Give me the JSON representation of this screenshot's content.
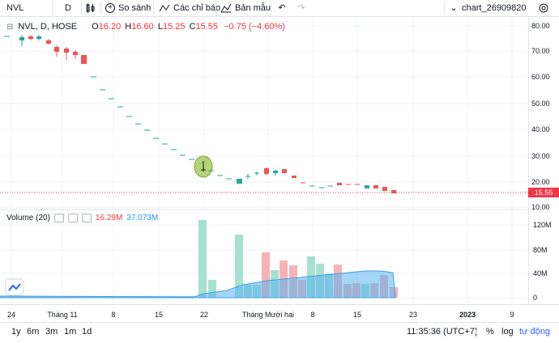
{
  "toolbar": {
    "symbol": "NVL",
    "interval": "D",
    "compare_label": "So sánh",
    "indicators_label": "Các chỉ báo",
    "templates_label": "Bản mẫu",
    "layout_name": "chart_26909820"
  },
  "legend": {
    "title": "NVL, D, HOSE",
    "open_label": "O",
    "open": "16.20",
    "high_label": "H",
    "high": "16.60",
    "low_label": "L",
    "low": "15.25",
    "close_label": "C",
    "close": "15.55",
    "change": "−0.75 (−4.60%)"
  },
  "volume_legend": {
    "title": "Volume (20)",
    "value1": "16.29M",
    "value2": "37.073M"
  },
  "price_axis": [
    "80.00",
    "70.00",
    "60.00",
    "50.00",
    "40.00",
    "30.00",
    "20.00",
    "10.00"
  ],
  "current_price": "15.55",
  "volume_axis": [
    "120M",
    "80M",
    "40M",
    "0"
  ],
  "time_axis": [
    "24",
    "Tháng 11",
    "8",
    "15",
    "22",
    "Tháng Mười hai",
    "8",
    "15",
    "23",
    "2023",
    "9"
  ],
  "bottom": {
    "ranges": [
      "1y",
      "6m",
      "3m",
      "1m",
      "1d"
    ],
    "time": "11:35:36 (UTC+7)",
    "percent": "%",
    "log": "log",
    "auto": "tự động"
  },
  "colors": {
    "up": "#26a69a",
    "down": "#ef5350",
    "volume_ma": "#5ab4f0",
    "accent": "#2962ff"
  },
  "icons": [
    "compare-icon",
    "indicators-icon",
    "templates-icon",
    "undo-icon",
    "redo-icon",
    "settings-icon",
    "tradingview-logo-icon"
  ]
}
